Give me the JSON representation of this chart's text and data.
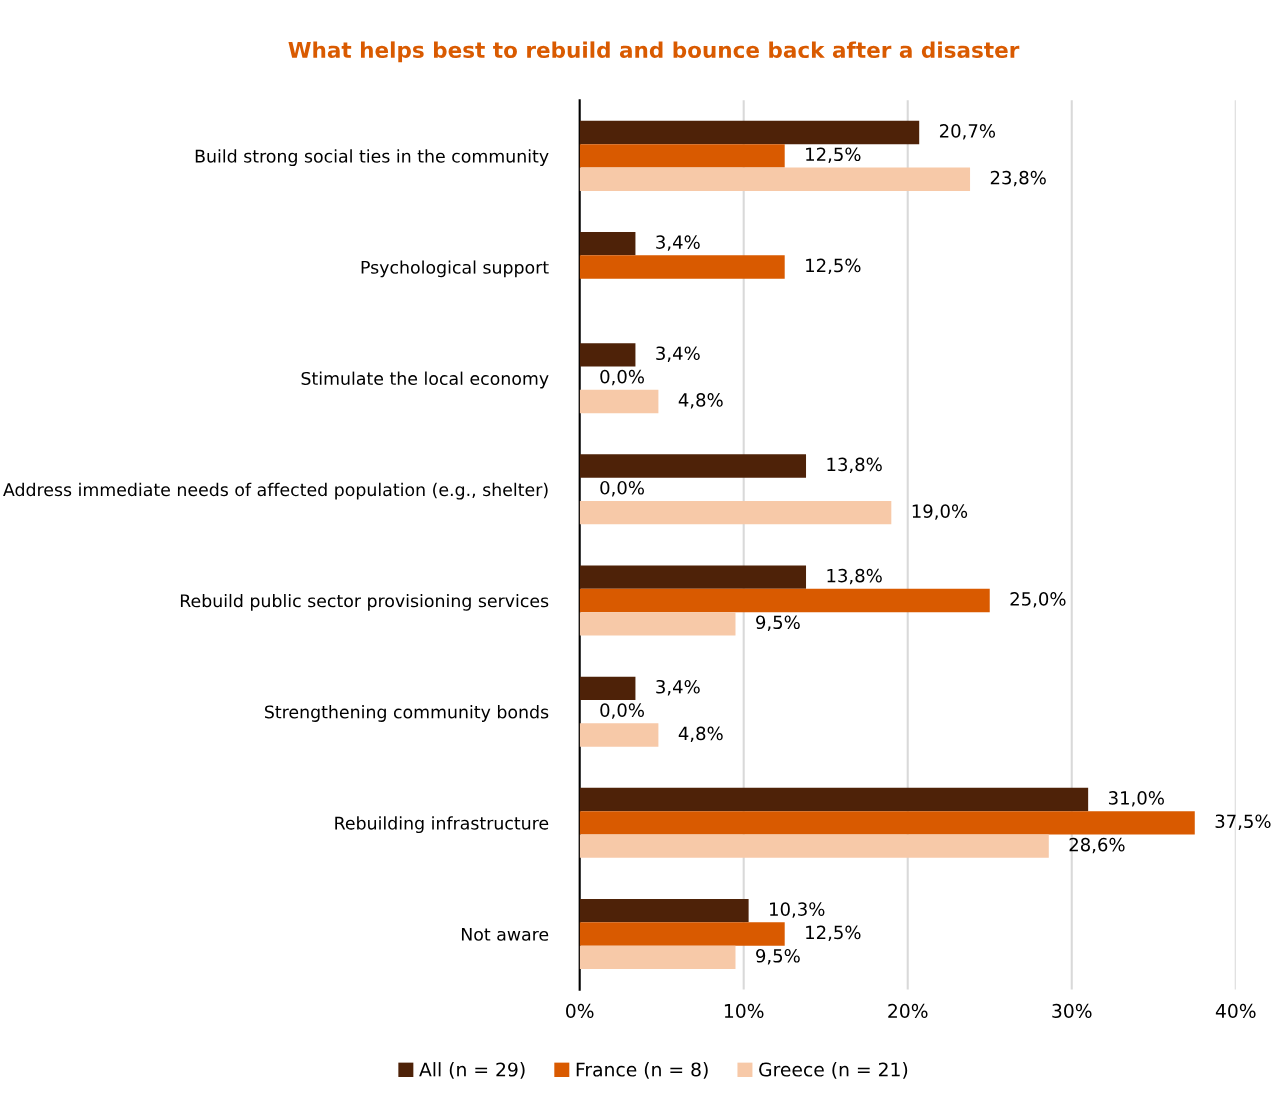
{
  "chart_data": {
    "type": "bar",
    "orientation": "horizontal",
    "title": "What helps best to rebuild and bounce back after a disaster",
    "categories": [
      "Build strong social ties in the community",
      "Psychological support",
      "Stimulate the local economy",
      "Address immediate needs of affected population (e.g., shelter)",
      "Rebuild public sector provisioning services",
      "Strengthening community bonds",
      "Rebuilding infrastructure",
      "Not aware"
    ],
    "series": [
      {
        "name": "All (n = 29)",
        "color": "#4e2208",
        "values": [
          20.7,
          3.4,
          3.4,
          13.8,
          13.8,
          3.4,
          31.0,
          10.3
        ],
        "value_labels": [
          "20,7%",
          "3,4%",
          "3,4%",
          "13,8%",
          "13,8%",
          "3,4%",
          "31,0%",
          "10,3%"
        ]
      },
      {
        "name": "France (n = 8)",
        "color": "#d95a00",
        "values": [
          12.5,
          12.5,
          0.0,
          0.0,
          25.0,
          0.0,
          37.5,
          12.5
        ],
        "value_labels": [
          "12,5%",
          "12,5%",
          "0,0%",
          "0,0%",
          "25,0%",
          "0,0%",
          "37,5%",
          "12,5%"
        ]
      },
      {
        "name": "Greece (n = 21)",
        "color": "#f7c9a8",
        "values": [
          23.8,
          null,
          4.8,
          19.0,
          9.5,
          4.8,
          28.6,
          9.5
        ],
        "value_labels": [
          "23,8%",
          null,
          "4,8%",
          "19,0%",
          "9,5%",
          "4,8%",
          "28,6%",
          "9,5%"
        ]
      }
    ],
    "xlim": [
      0,
      40
    ],
    "xticks": [
      {
        "value": 0,
        "label": "0%"
      },
      {
        "value": 10,
        "label": "10%"
      },
      {
        "value": 20,
        "label": "20%"
      },
      {
        "value": 30,
        "label": "30%"
      },
      {
        "value": 40,
        "label": "40%"
      }
    ],
    "grid": "x",
    "legend": "bottom"
  }
}
